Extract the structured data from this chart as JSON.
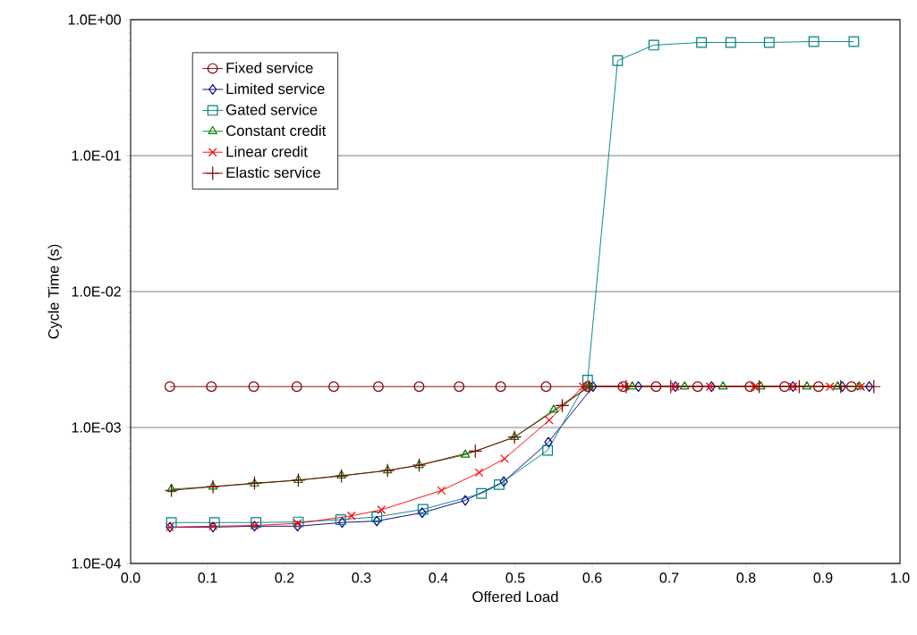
{
  "chart_data": {
    "type": "line",
    "xlabel": "Offered Load",
    "ylabel": "Cycle Time (s)",
    "log": "y",
    "grid": "y",
    "legend": "top left",
    "xlim": [
      0,
      1
    ],
    "ylim": [
      0.0001,
      1
    ],
    "xticks": [
      {
        "value": 0,
        "label": "0.0"
      },
      0.1,
      0.2,
      0.3,
      0.4,
      0.5,
      0.6,
      0.7,
      0.8,
      0.9,
      {
        "value": 1,
        "label": "1.0"
      }
    ],
    "yticks": [
      {
        "value": 0.0001,
        "label": "1.0E-04"
      },
      {
        "value": 0.001,
        "label": "1.0E-03"
      },
      {
        "value": 0.01,
        "label": "1.0E-02"
      },
      {
        "value": 0.1,
        "label": "1.0E-01"
      },
      {
        "value": 1,
        "label": "1.0E+00"
      }
    ],
    "series": [
      {
        "name": "Fixed service",
        "color": "#800000",
        "marker": "circle",
        "x": [
          0.051,
          0.105,
          0.16,
          0.216,
          0.264,
          0.322,
          0.375,
          0.427,
          0.481,
          0.54,
          0.594,
          0.64,
          0.683,
          0.737,
          0.805,
          0.85,
          0.894,
          0.937
        ],
        "values": [
          0.002,
          0.002,
          0.002,
          0.002,
          0.002,
          0.002,
          0.002,
          0.002,
          0.002,
          0.002,
          0.002,
          0.002,
          0.002,
          0.002,
          0.002,
          0.002,
          0.002,
          0.002
        ]
      },
      {
        "name": "Limited service",
        "color": "#000080",
        "marker": "diamond",
        "x": [
          0.051,
          0.107,
          0.161,
          0.217,
          0.275,
          0.32,
          0.379,
          0.435,
          0.485,
          0.543,
          0.601,
          0.66,
          0.708,
          0.755,
          0.861,
          0.925,
          0.96
        ],
        "values": [
          0.000185,
          0.000185,
          0.000188,
          0.000188,
          0.0002,
          0.000205,
          0.000236,
          0.000291,
          0.0004,
          0.00078,
          0.002,
          0.002,
          0.002,
          0.002,
          0.002,
          0.002,
          0.002
        ]
      },
      {
        "name": "Gated service",
        "color": "#008080",
        "marker": "square",
        "x": [
          0.053,
          0.109,
          0.163,
          0.218,
          0.273,
          0.32,
          0.38,
          0.456,
          0.479,
          0.542,
          0.594,
          0.633,
          0.68,
          0.742,
          0.78,
          0.83,
          0.888,
          0.94
        ],
        "values": [
          0.0002,
          0.0002,
          0.0002,
          0.000202,
          0.00021,
          0.00022,
          0.00025,
          0.000327,
          0.00038,
          0.00068,
          0.00223,
          0.5,
          0.65,
          0.68,
          0.68,
          0.68,
          0.69,
          0.69
        ]
      },
      {
        "name": "Constant credit",
        "color": "#008000",
        "marker": "triangle",
        "x": [
          0.053,
          0.107,
          0.161,
          0.218,
          0.274,
          0.334,
          0.375,
          0.435,
          0.499,
          0.55,
          0.596,
          0.652,
          0.72,
          0.77,
          0.819,
          0.879,
          0.919,
          0.947
        ],
        "values": [
          0.000352,
          0.000367,
          0.000386,
          0.00041,
          0.000443,
          0.000483,
          0.000528,
          0.00063,
          0.00085,
          0.00135,
          0.002,
          0.002,
          0.002,
          0.002,
          0.002,
          0.002,
          0.002,
          0.002
        ]
      },
      {
        "name": "Linear credit",
        "color": "#ff0000",
        "marker": "cross",
        "x": [
          0.051,
          0.107,
          0.161,
          0.217,
          0.287,
          0.326,
          0.404,
          0.453,
          0.486,
          0.544,
          0.588,
          0.642,
          0.708,
          0.753,
          0.811,
          0.861,
          0.909,
          0.949
        ],
        "values": [
          0.000185,
          0.000188,
          0.00019,
          0.000197,
          0.000224,
          0.000248,
          0.000344,
          0.000466,
          0.00059,
          0.00113,
          0.002,
          0.002,
          0.002,
          0.002,
          0.002,
          0.002,
          0.002,
          0.002
        ]
      },
      {
        "name": "Elastic service",
        "color": "#800000",
        "marker": "plus",
        "x": [
          0.053,
          0.107,
          0.161,
          0.218,
          0.274,
          0.334,
          0.375,
          0.448,
          0.499,
          0.561,
          0.596,
          0.644,
          0.702,
          0.817,
          0.869,
          0.923,
          0.966
        ],
        "values": [
          0.000345,
          0.000367,
          0.00039,
          0.00041,
          0.00044,
          0.000483,
          0.000528,
          0.00067,
          0.00085,
          0.00145,
          0.002,
          0.002,
          0.002,
          0.002,
          0.002,
          0.002,
          0.002
        ]
      }
    ]
  }
}
